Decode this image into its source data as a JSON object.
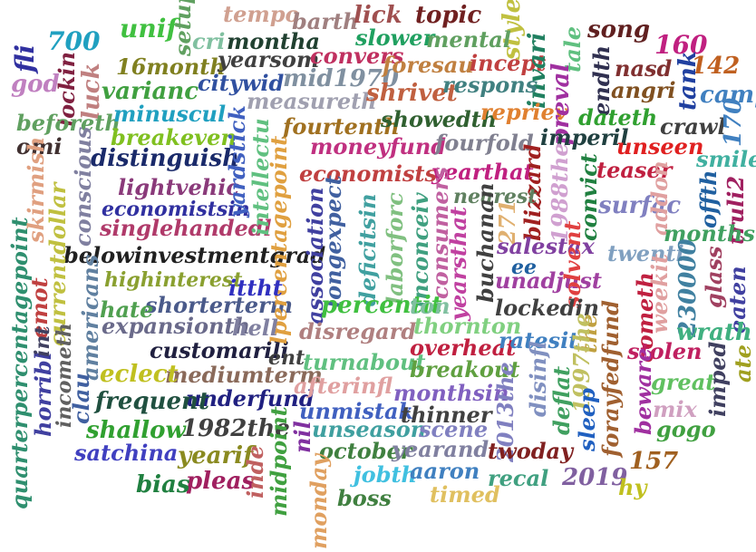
{
  "words": [
    {
      "text": "quarterpercentagepoint",
      "color": "#2f8f6f"
    },
    {
      "text": "belowinvestmentgrad",
      "color": "#202020"
    },
    {
      "text": "singlehandedl",
      "color": "#b03a6a"
    },
    {
      "text": "distinguish",
      "color": "#1a2a6a"
    },
    {
      "text": "economistsin",
      "color": "#3030a0"
    },
    {
      "text": "lightvehic",
      "color": "#8a3a7a"
    },
    {
      "text": "customarili",
      "color": "#202040"
    },
    {
      "text": "underfund",
      "color": "#202080"
    },
    {
      "text": "frequent",
      "color": "#205040"
    },
    {
      "text": "mediumterm",
      "color": "#8a6a5a"
    },
    {
      "text": "expansionth",
      "color": "#6a6a8a"
    },
    {
      "text": "shorterterm",
      "color": "#4a5a8a"
    },
    {
      "text": "highinterest",
      "color": "#8aa030"
    },
    {
      "text": "eclect",
      "color": "#c0c020"
    },
    {
      "text": "shallow",
      "color": "#30a030"
    },
    {
      "text": "satchina",
      "color": "#4040c0"
    },
    {
      "text": "1982the",
      "color": "#404040"
    },
    {
      "text": "yearif",
      "color": "#8a8a20"
    },
    {
      "text": "pleas",
      "color": "#a02060"
    },
    {
      "text": "bias",
      "color": "#208040"
    },
    {
      "text": "hate",
      "color": "#50a050"
    },
    {
      "text": "700",
      "color": "#20a0c0"
    },
    {
      "text": "unif",
      "color": "#40c040"
    },
    {
      "text": "setup",
      "color": "#60a060"
    },
    {
      "text": "fli",
      "color": "#3030a0"
    },
    {
      "text": "god",
      "color": "#c080c0"
    },
    {
      "text": "lockin",
      "color": "#802040"
    },
    {
      "text": "luck",
      "color": "#c08080"
    },
    {
      "text": "16month",
      "color": "#808020"
    },
    {
      "text": "varianc",
      "color": "#40a040"
    },
    {
      "text": "beforeth",
      "color": "#60a060"
    },
    {
      "text": "omi",
      "color": "#403030"
    },
    {
      "text": "minuscul",
      "color": "#20a0c0"
    },
    {
      "text": "breakeven",
      "color": "#80c020"
    },
    {
      "text": "skirmish",
      "color": "#e0a080"
    },
    {
      "text": "conscious",
      "color": "#8080a0"
    },
    {
      "text": "tempo",
      "color": "#d0a090"
    },
    {
      "text": "cri",
      "color": "#80c0a0"
    },
    {
      "text": "montha",
      "color": "#204030"
    },
    {
      "text": "barth",
      "color": "#a08080"
    },
    {
      "text": "lick",
      "color": "#a05050"
    },
    {
      "text": "topic",
      "color": "#702020"
    },
    {
      "text": "style",
      "color": "#c0c040"
    },
    {
      "text": "song",
      "color": "#602020"
    },
    {
      "text": "yearsom",
      "color": "#404040"
    },
    {
      "text": "convers",
      "color": "#c03060"
    },
    {
      "text": "slower",
      "color": "#20a060"
    },
    {
      "text": "mental",
      "color": "#60a060"
    },
    {
      "text": "citywid",
      "color": "#3050a0"
    },
    {
      "text": "mid1970",
      "color": "#8090a0"
    },
    {
      "text": "foresau",
      "color": "#c08040"
    },
    {
      "text": "incept",
      "color": "#c04040"
    },
    {
      "text": "invari",
      "color": "#208060"
    },
    {
      "text": "tale",
      "color": "#60c080"
    },
    {
      "text": "160",
      "color": "#c02080"
    },
    {
      "text": "nasd",
      "color": "#803030"
    },
    {
      "text": "142",
      "color": "#c06020"
    },
    {
      "text": "measureth",
      "color": "#a0a0b0"
    },
    {
      "text": "shrivet",
      "color": "#c06040"
    },
    {
      "text": "respons",
      "color": "#408080"
    },
    {
      "text": "endth",
      "color": "#303050"
    },
    {
      "text": "angri",
      "color": "#805020"
    },
    {
      "text": "tank",
      "color": "#2040a0"
    },
    {
      "text": "camp",
      "color": "#4080c0"
    },
    {
      "text": "fourtenth",
      "color": "#a07020"
    },
    {
      "text": "showedth",
      "color": "#306030"
    },
    {
      "text": "repriev",
      "color": "#e08030"
    },
    {
      "text": "preval",
      "color": "#a030a0"
    },
    {
      "text": "dateth",
      "color": "#30a030"
    },
    {
      "text": "crawl",
      "color": "#404040"
    },
    {
      "text": "170",
      "color": "#4080c0"
    },
    {
      "text": "yardstick",
      "color": "#4060c0"
    },
    {
      "text": "intellectu",
      "color": "#60c080"
    },
    {
      "text": "moneyfund",
      "color": "#c03080"
    },
    {
      "text": "fourfold",
      "color": "#808090"
    },
    {
      "text": "imperil",
      "color": "#204040"
    },
    {
      "text": "unseen",
      "color": "#e02020"
    },
    {
      "text": "smile",
      "color": "#40b0a0"
    },
    {
      "text": "economists",
      "color": "#c04040"
    },
    {
      "text": "yearthat",
      "color": "#c02080"
    },
    {
      "text": "blizzard",
      "color": "#a02020"
    },
    {
      "text": "1988the",
      "color": "#d0a0d0"
    },
    {
      "text": "convict",
      "color": "#208040"
    },
    {
      "text": "teaser",
      "color": "#c02040"
    },
    {
      "text": "nearest",
      "color": "#608060"
    },
    {
      "text": "surfac",
      "color": "#8080c0"
    },
    {
      "text": "addon",
      "color": "#e0a0a0"
    },
    {
      "text": "offth",
      "color": "#2060a0"
    },
    {
      "text": "truli2",
      "color": "#a02060"
    },
    {
      "text": "months",
      "color": "#40a060"
    },
    {
      "text": "lpercentagepoint",
      "color": "#e0a040"
    },
    {
      "text": "association",
      "color": "#4040a0"
    },
    {
      "text": "longexpect",
      "color": "#4060a0"
    },
    {
      "text": "deficitsin",
      "color": "#40a0a0"
    },
    {
      "text": "laborforc",
      "color": "#80c080"
    },
    {
      "text": "inconceiv",
      "color": "#40a080"
    },
    {
      "text": "consumers",
      "color": "#c060a0"
    },
    {
      "text": "yearsthat",
      "color": "#c040a0"
    },
    {
      "text": "buchanan",
      "color": "#404040"
    },
    {
      "text": "271",
      "color": "#e0b070"
    },
    {
      "text": "salestax",
      "color": "#8040a0"
    },
    {
      "text": "ee",
      "color": "#2060a0"
    },
    {
      "text": "unadjust",
      "color": "#a040a0"
    },
    {
      "text": "twenti",
      "color": "#80a0c0"
    },
    {
      "text": "230000",
      "color": "#4080a0"
    },
    {
      "text": "glass",
      "color": "#a04060"
    },
    {
      "text": "eaten",
      "color": "#4040a0"
    },
    {
      "text": "solvent",
      "color": "#e04040"
    },
    {
      "text": "weekit",
      "color": "#e0a0a0"
    },
    {
      "text": "ittht",
      "color": "#3030c0"
    },
    {
      "text": "hell",
      "color": "#8080a0"
    },
    {
      "text": "emot",
      "color": "#c04040"
    },
    {
      "text": "currentdollar",
      "color": "#c0c040"
    },
    {
      "text": "americans",
      "color": "#6080a0"
    },
    {
      "text": "horribl",
      "color": "#4040a0"
    },
    {
      "text": "incometh",
      "color": "#606060"
    },
    {
      "text": "int",
      "color": "#404060"
    },
    {
      "text": "percentit",
      "color": "#40c040"
    },
    {
      "text": "ton",
      "color": "#80c0a0"
    },
    {
      "text": "lockedin",
      "color": "#404040"
    },
    {
      "text": "thornton",
      "color": "#80d080"
    },
    {
      "text": "disregard",
      "color": "#b08080"
    },
    {
      "text": "overheat",
      "color": "#c02040"
    },
    {
      "text": "ratesit",
      "color": "#4080c0"
    },
    {
      "text": "the",
      "color": "#c0a040"
    },
    {
      "text": "cometh",
      "color": "#c02040"
    },
    {
      "text": "wrath",
      "color": "#40b080"
    },
    {
      "text": "stolen",
      "color": "#c02060"
    },
    {
      "text": "ate",
      "color": "#a0a020"
    },
    {
      "text": "ent",
      "color": "#404040"
    },
    {
      "text": "turnabout",
      "color": "#60c080"
    },
    {
      "text": "breakout",
      "color": "#60a040"
    },
    {
      "text": "afterinfl",
      "color": "#e0a0a0"
    },
    {
      "text": "monthsin",
      "color": "#8060c0"
    },
    {
      "text": "disinfl",
      "color": "#8090c0"
    },
    {
      "text": "1997the",
      "color": "#c0c060"
    },
    {
      "text": "deflat",
      "color": "#40a060"
    },
    {
      "text": "forayfedfund",
      "color": "#a06030"
    },
    {
      "text": "great",
      "color": "#60c060"
    },
    {
      "text": "beware",
      "color": "#a030a0"
    },
    {
      "text": "imped",
      "color": "#404060"
    },
    {
      "text": "mix",
      "color": "#d0a0c0"
    },
    {
      "text": "unmistak",
      "color": "#4060c0"
    },
    {
      "text": "thinner",
      "color": "#404040"
    },
    {
      "text": "unseason",
      "color": "#40a0a0"
    },
    {
      "text": "scene",
      "color": "#8080c0"
    },
    {
      "text": "2013the",
      "color": "#8080c0"
    },
    {
      "text": "sleep",
      "color": "#2060c0"
    },
    {
      "text": "gogo",
      "color": "#40a040"
    },
    {
      "text": "nil",
      "color": "#8030a0"
    },
    {
      "text": "midpoint",
      "color": "#40a040"
    },
    {
      "text": "inde",
      "color": "#c06060"
    },
    {
      "text": "october",
      "color": "#408040"
    },
    {
      "text": "yearand",
      "color": "#8080a0"
    },
    {
      "text": "twoday",
      "color": "#802020"
    },
    {
      "text": "157",
      "color": "#a06020"
    },
    {
      "text": "jobth",
      "color": "#40c0e0"
    },
    {
      "text": "aaron",
      "color": "#4080c0"
    },
    {
      "text": "recal",
      "color": "#40a080"
    },
    {
      "text": "2019",
      "color": "#8060a0"
    },
    {
      "text": "hy",
      "color": "#c0c020"
    },
    {
      "text": "monday",
      "color": "#e0a060"
    },
    {
      "text": "boss",
      "color": "#408040"
    },
    {
      "text": "timed",
      "color": "#e0c060"
    },
    {
      "text": "clau",
      "color": "#4060a0"
    }
  ]
}
